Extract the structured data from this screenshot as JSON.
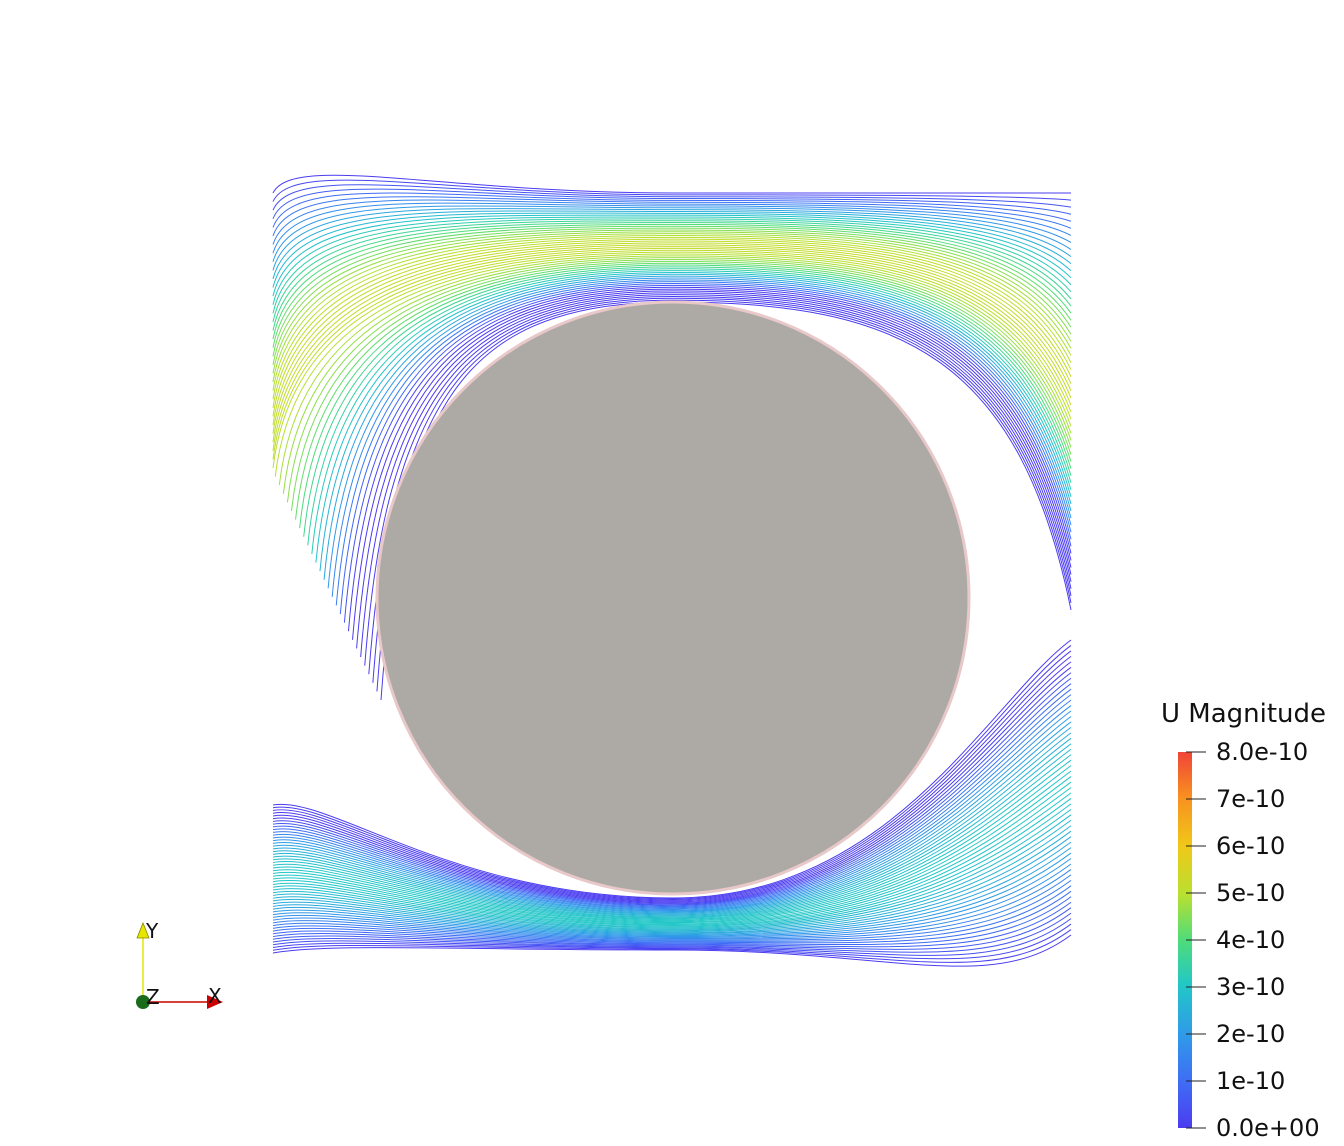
{
  "colorbar": {
    "title": "U Magnitude",
    "labels": [
      "8.0e-10",
      "7e-10",
      "6e-10",
      "5e-10",
      "4e-10",
      "3e-10",
      "2e-10",
      "1e-10",
      "0.0e+00"
    ],
    "range": [
      0,
      8e-10
    ],
    "colormap": "jet (blue to red)"
  },
  "orientation_axes": {
    "x_label": "X",
    "y_label": "Y",
    "z_label": "Z",
    "x_color": "#cc0000",
    "y_color": "#e6e600",
    "z_color": "#006400"
  },
  "scene": {
    "object": "streamlines around cylinder",
    "obstacle_color": "#adaaa5",
    "background": "#ffffff"
  }
}
